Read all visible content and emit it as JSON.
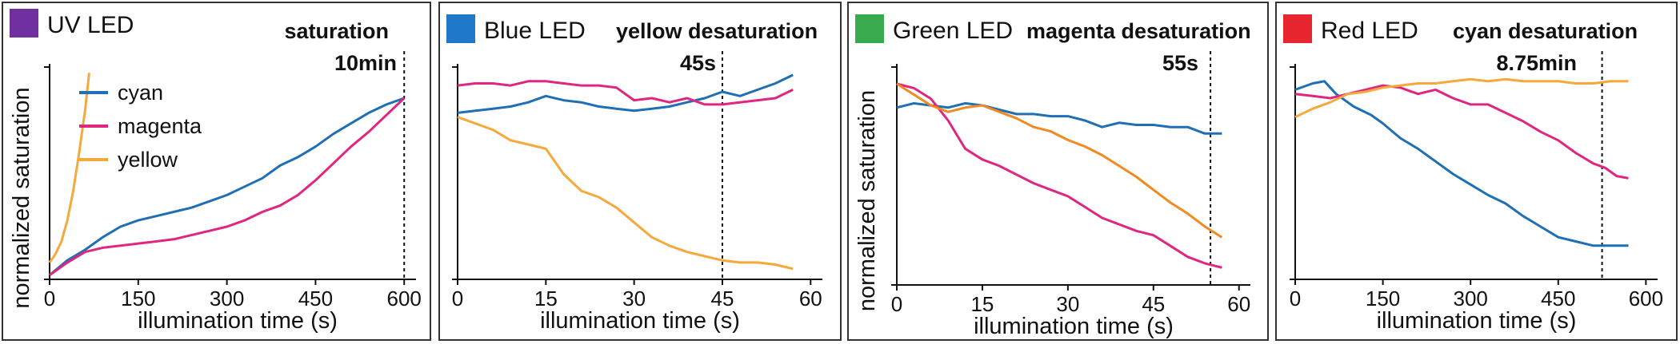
{
  "chart_data": [
    {
      "type": "line",
      "title": "UV LED",
      "title_color": "#7030a0",
      "annotation": "saturation",
      "marker_label": "10min",
      "marker_x": 600,
      "xlabel": "illumination time (s)",
      "ylabel": "normalized saturation",
      "xlim": [
        0,
        620
      ],
      "ylim": [
        0,
        1
      ],
      "xticks": [
        0,
        150,
        300,
        450,
        600
      ],
      "legend": "top-left",
      "series": [
        {
          "name": "cyan",
          "color": "#1f6fb5",
          "x": [
            0,
            30,
            60,
            90,
            120,
            150,
            180,
            210,
            240,
            270,
            300,
            330,
            360,
            390,
            420,
            450,
            480,
            510,
            540,
            570,
            600
          ],
          "y": [
            0.02,
            0.09,
            0.14,
            0.2,
            0.25,
            0.28,
            0.3,
            0.32,
            0.34,
            0.37,
            0.4,
            0.44,
            0.48,
            0.54,
            0.58,
            0.63,
            0.69,
            0.74,
            0.79,
            0.83,
            0.86
          ]
        },
        {
          "name": "magenta",
          "color": "#e0267f",
          "x": [
            0,
            30,
            60,
            90,
            120,
            150,
            180,
            210,
            240,
            270,
            300,
            330,
            360,
            390,
            420,
            450,
            480,
            510,
            540,
            570,
            600
          ],
          "y": [
            0.02,
            0.08,
            0.13,
            0.15,
            0.16,
            0.17,
            0.18,
            0.19,
            0.21,
            0.23,
            0.25,
            0.28,
            0.32,
            0.35,
            0.4,
            0.47,
            0.55,
            0.63,
            0.7,
            0.78,
            0.86
          ]
        },
        {
          "name": "yellow",
          "color": "#f5a93b",
          "x": [
            0,
            10,
            20,
            30,
            40,
            50,
            60,
            67
          ],
          "y": [
            0.08,
            0.12,
            0.18,
            0.28,
            0.42,
            0.6,
            0.8,
            0.98
          ]
        }
      ]
    },
    {
      "type": "line",
      "title": "Blue LED",
      "title_color": "#1f78c8",
      "annotation": "yellow desaturation",
      "marker_label": "45s",
      "marker_x": 45,
      "xlabel": "illumination time (s)",
      "ylabel": "",
      "xlim": [
        0,
        62
      ],
      "ylim": [
        0,
        1
      ],
      "xticks": [
        0,
        15,
        30,
        45,
        60
      ],
      "series": [
        {
          "name": "cyan",
          "color": "#1f6fb5",
          "x": [
            0,
            3,
            6,
            9,
            12,
            15,
            18,
            21,
            24,
            27,
            30,
            33,
            36,
            39,
            42,
            45,
            48,
            51,
            54,
            57
          ],
          "y": [
            0.79,
            0.8,
            0.81,
            0.82,
            0.84,
            0.87,
            0.85,
            0.84,
            0.82,
            0.81,
            0.8,
            0.81,
            0.82,
            0.84,
            0.86,
            0.89,
            0.87,
            0.9,
            0.93,
            0.97
          ]
        },
        {
          "name": "magenta",
          "color": "#e0267f",
          "x": [
            0,
            3,
            6,
            9,
            12,
            15,
            18,
            21,
            24,
            27,
            30,
            33,
            36,
            39,
            42,
            45,
            48,
            51,
            54,
            57
          ],
          "y": [
            0.92,
            0.93,
            0.93,
            0.92,
            0.94,
            0.94,
            0.93,
            0.92,
            0.92,
            0.91,
            0.85,
            0.86,
            0.84,
            0.86,
            0.83,
            0.83,
            0.84,
            0.85,
            0.86,
            0.9
          ]
        },
        {
          "name": "yellow",
          "color": "#f5a93b",
          "x": [
            0,
            3,
            6,
            9,
            12,
            15,
            18,
            21,
            24,
            27,
            30,
            33,
            36,
            39,
            42,
            45,
            48,
            51,
            54,
            57
          ],
          "y": [
            0.77,
            0.74,
            0.71,
            0.66,
            0.64,
            0.62,
            0.5,
            0.42,
            0.39,
            0.34,
            0.27,
            0.2,
            0.16,
            0.13,
            0.11,
            0.09,
            0.08,
            0.08,
            0.07,
            0.05
          ]
        }
      ]
    },
    {
      "type": "line",
      "title": "Green LED",
      "title_color": "#3aaa4e",
      "annotation": "magenta desaturation",
      "marker_label": "55s",
      "marker_x": 55,
      "xlabel": "illumination time (s)",
      "ylabel": "normalized saturation",
      "xlim": [
        0,
        62
      ],
      "ylim": [
        0,
        1
      ],
      "xticks": [
        0,
        15,
        30,
        45,
        60
      ],
      "series": [
        {
          "name": "cyan",
          "color": "#1f6fb5",
          "x": [
            0,
            3,
            6,
            9,
            12,
            15,
            18,
            21,
            24,
            27,
            30,
            33,
            36,
            39,
            42,
            45,
            48,
            51,
            54,
            57
          ],
          "y": [
            0.82,
            0.84,
            0.83,
            0.82,
            0.84,
            0.83,
            0.81,
            0.79,
            0.79,
            0.78,
            0.78,
            0.76,
            0.73,
            0.75,
            0.74,
            0.74,
            0.73,
            0.73,
            0.7,
            0.7
          ]
        },
        {
          "name": "magenta",
          "color": "#e0267f",
          "x": [
            0,
            3,
            6,
            9,
            12,
            15,
            18,
            21,
            24,
            27,
            30,
            33,
            36,
            39,
            42,
            45,
            48,
            51,
            54,
            57
          ],
          "y": [
            0.93,
            0.91,
            0.86,
            0.76,
            0.63,
            0.58,
            0.55,
            0.51,
            0.47,
            0.44,
            0.41,
            0.36,
            0.31,
            0.28,
            0.25,
            0.23,
            0.18,
            0.13,
            0.1,
            0.08
          ]
        },
        {
          "name": "orange",
          "color": "#f28a22",
          "x": [
            0,
            3,
            6,
            9,
            12,
            15,
            18,
            21,
            24,
            27,
            30,
            33,
            36,
            39,
            42,
            45,
            48,
            51,
            54,
            57
          ],
          "y": [
            0.93,
            0.88,
            0.83,
            0.8,
            0.82,
            0.83,
            0.8,
            0.77,
            0.73,
            0.71,
            0.67,
            0.64,
            0.6,
            0.55,
            0.5,
            0.44,
            0.38,
            0.33,
            0.27,
            0.22
          ]
        }
      ]
    },
    {
      "type": "line",
      "title": "Red LED",
      "title_color": "#e8262f",
      "annotation": "cyan desaturation",
      "marker_label": "8.75min",
      "marker_x": 525,
      "xlabel": "illumination time (s)",
      "ylabel": "",
      "xlim": [
        0,
        620
      ],
      "ylim": [
        0,
        1
      ],
      "xticks": [
        0,
        150,
        300,
        450,
        600
      ],
      "series": [
        {
          "name": "cyan",
          "color": "#1f6fb5",
          "x": [
            0,
            30,
            50,
            70,
            100,
            130,
            150,
            180,
            210,
            240,
            270,
            300,
            330,
            360,
            390,
            420,
            450,
            480,
            510,
            540,
            570
          ],
          "y": [
            0.9,
            0.93,
            0.94,
            0.88,
            0.82,
            0.78,
            0.74,
            0.67,
            0.62,
            0.56,
            0.5,
            0.45,
            0.4,
            0.36,
            0.3,
            0.25,
            0.2,
            0.18,
            0.16,
            0.16,
            0.16
          ]
        },
        {
          "name": "magenta",
          "color": "#e0267f",
          "x": [
            0,
            30,
            60,
            90,
            120,
            150,
            180,
            210,
            240,
            270,
            300,
            330,
            360,
            390,
            420,
            450,
            480,
            510,
            530,
            550,
            570
          ],
          "y": [
            0.88,
            0.87,
            0.86,
            0.88,
            0.9,
            0.92,
            0.91,
            0.88,
            0.9,
            0.86,
            0.83,
            0.83,
            0.79,
            0.75,
            0.7,
            0.66,
            0.6,
            0.55,
            0.53,
            0.49,
            0.48
          ]
        },
        {
          "name": "yellow",
          "color": "#f5a93b",
          "x": [
            0,
            30,
            60,
            90,
            120,
            150,
            180,
            210,
            240,
            270,
            300,
            330,
            360,
            390,
            420,
            450,
            480,
            510,
            540,
            570
          ],
          "y": [
            0.77,
            0.81,
            0.84,
            0.88,
            0.89,
            0.91,
            0.92,
            0.93,
            0.93,
            0.94,
            0.95,
            0.94,
            0.95,
            0.94,
            0.94,
            0.94,
            0.93,
            0.93,
            0.94,
            0.94
          ]
        }
      ]
    }
  ]
}
